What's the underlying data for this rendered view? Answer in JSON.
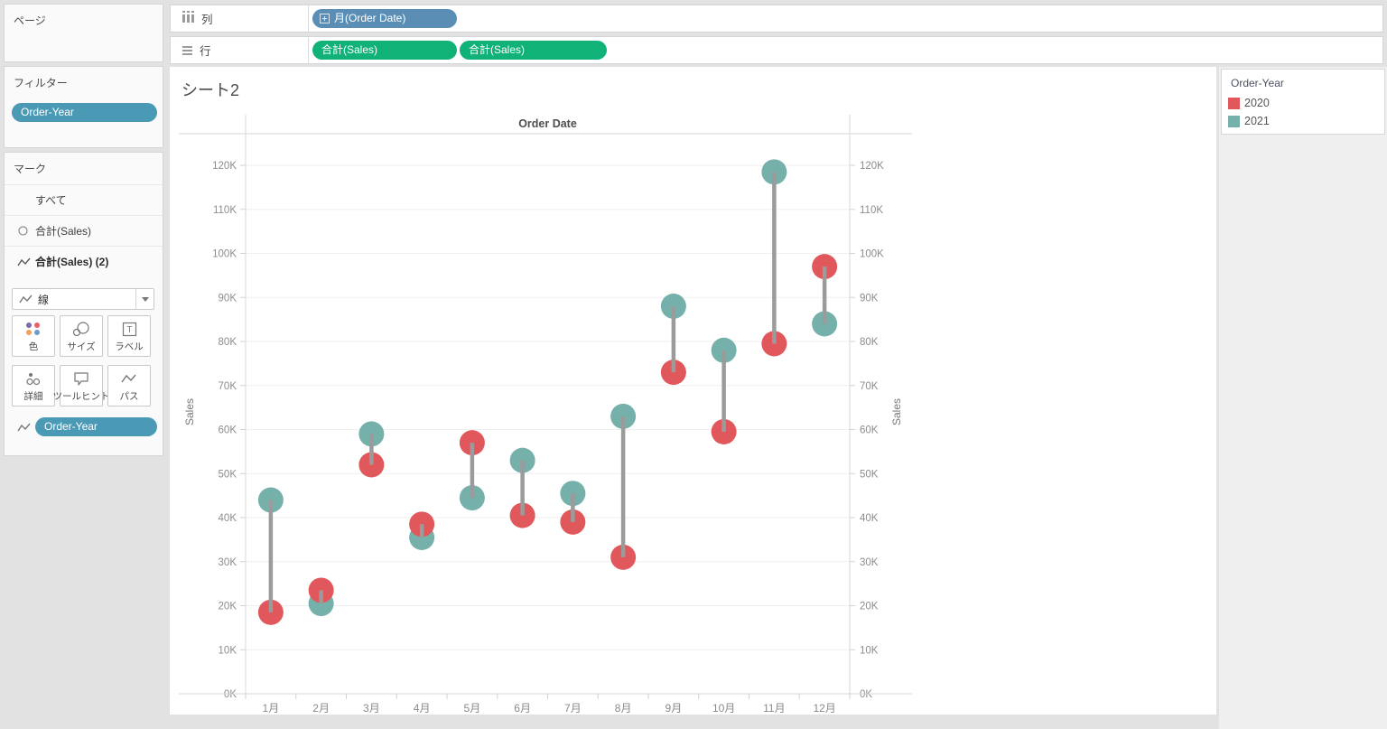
{
  "shelves": {
    "columns_label": "列",
    "rows_label": "行",
    "columns_pills": [
      {
        "label": "月(Order Date)",
        "type": "dimension"
      }
    ],
    "rows_pills": [
      {
        "label": "合計(Sales)",
        "type": "measure"
      },
      {
        "label": "合計(Sales)",
        "type": "measure"
      }
    ]
  },
  "sidebar": {
    "pages_title": "ページ",
    "filters_title": "フィルター",
    "filter_pill": "Order-Year",
    "marks": {
      "title": "マーク",
      "rows": [
        {
          "label": "すべて",
          "icon": "none"
        },
        {
          "label": "合計(Sales)",
          "icon": "circle"
        },
        {
          "label": "合計(Sales) (2)",
          "icon": "line"
        }
      ],
      "mark_type": "線",
      "buttons": [
        {
          "label": "色",
          "icon": "color-dots"
        },
        {
          "label": "サイズ",
          "icon": "size-circles"
        },
        {
          "label": "ラベル",
          "icon": "label-t"
        },
        {
          "label": "詳細",
          "icon": "detail-dots"
        },
        {
          "label": "ツールヒント",
          "icon": "tooltip-bubble"
        },
        {
          "label": "パス",
          "icon": "path-zigzag"
        }
      ],
      "encoding_pill": "Order-Year"
    }
  },
  "sheet": {
    "title": "シート2",
    "column_header": "Order Date"
  },
  "legend": {
    "title": "Order-Year",
    "items": [
      {
        "label": "2020",
        "color": "#e0585b"
      },
      {
        "label": "2021",
        "color": "#76b0ab"
      }
    ]
  },
  "colors": {
    "dimension_pill": "#5a8eb5",
    "measure_pill": "#10b277",
    "order_year_pill": "#4a9ab5",
    "color_button_dots": [
      "#7e68a8",
      "#ea5f68",
      "#f2a05a",
      "#6f9ac8"
    ]
  },
  "chart_data": {
    "type": "scatter",
    "subtype": "dumbbell: dual-axis circle marks connected by gray line paths per month",
    "title": "シート2",
    "x_title": "Order Date",
    "categories": [
      "1月",
      "2月",
      "3月",
      "4月",
      "5月",
      "6月",
      "7月",
      "8月",
      "9月",
      "10月",
      "11月",
      "12月"
    ],
    "series": [
      {
        "name": "2020",
        "color": "#e0585b",
        "values": [
          18500,
          23500,
          52000,
          38500,
          57000,
          40500,
          39000,
          31000,
          73000,
          59500,
          79500,
          97000
        ]
      },
      {
        "name": "2021",
        "color": "#76b0ab",
        "values": [
          44000,
          20500,
          59000,
          35500,
          44500,
          53000,
          45500,
          63000,
          88000,
          78000,
          118500,
          84000
        ]
      }
    ],
    "connector_color": "#9b9b9b",
    "y_axis": {
      "title_left": "Sales",
      "title_right": "Sales",
      "min": 0,
      "max": 126800,
      "tick_step": 10000,
      "tick_labels": [
        "0K",
        "10K",
        "20K",
        "30K",
        "40K",
        "50K",
        "60K",
        "70K",
        "80K",
        "90K",
        "100K",
        "110K",
        "120K"
      ]
    },
    "grid": "horizontal gridlines every 10K",
    "legend_position": "top-right"
  }
}
